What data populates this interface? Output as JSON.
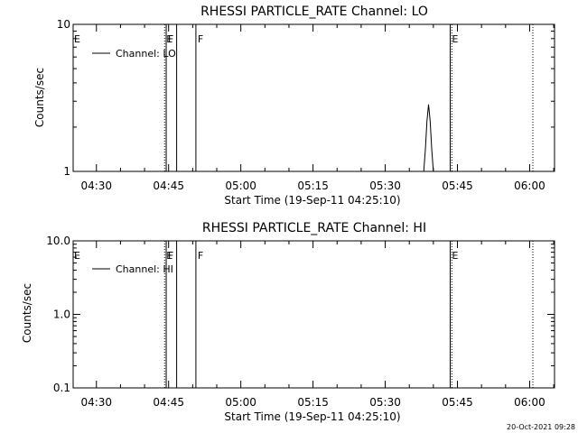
{
  "chart_data": [
    {
      "type": "line",
      "title": "RHESSI PARTICLE_RATE Channel: LO",
      "xlabel": "Start Time (19-Sep-11 04:25:10)",
      "ylabel": "Counts/sec",
      "y_scale": "log",
      "ylim": [
        1,
        10
      ],
      "y_ticks": [
        {
          "value": 1,
          "label": "1"
        },
        {
          "value": 10,
          "label": "10"
        }
      ],
      "xlim": [
        "04:25:10",
        "06:05:10"
      ],
      "x_ticks": [
        "04:30",
        "04:45",
        "05:00",
        "05:15",
        "05:30",
        "05:45",
        "06:00"
      ],
      "legend": {
        "placement": "top-left",
        "entries": [
          "Channel: LO"
        ]
      },
      "series": [
        {
          "name": "Channel: LO",
          "x": [
            "05:38:00",
            "05:38:20",
            "05:38:40",
            "05:39:00",
            "05:39:20",
            "05:39:40",
            "05:40:00"
          ],
          "y": [
            1.0,
            1.4,
            2.2,
            2.85,
            2.2,
            1.4,
            1.0
          ]
        }
      ],
      "markers": [
        {
          "time": "04:44:10",
          "style": "dotted",
          "label": "E"
        },
        {
          "time": "04:44:30",
          "style": "solid",
          "label": "F"
        },
        {
          "time": "04:46:40",
          "style": "solid",
          "label": ""
        },
        {
          "time": "04:50:40",
          "style": "solid",
          "label": "F"
        },
        {
          "time": "05:43:30",
          "style": "solid",
          "label": "E"
        },
        {
          "time": "05:43:50",
          "style": "dotted",
          "label": ""
        },
        {
          "time": "06:00:40",
          "style": "dotted",
          "label": ""
        }
      ]
    },
    {
      "type": "line",
      "title": "RHESSI PARTICLE_RATE Channel: HI",
      "xlabel": "Start Time (19-Sep-11 04:25:10)",
      "ylabel": "Counts/sec",
      "y_scale": "log",
      "ylim": [
        0.1,
        10
      ],
      "y_ticks": [
        {
          "value": 0.1,
          "label": "0.1"
        },
        {
          "value": 1,
          "label": "1.0"
        },
        {
          "value": 10,
          "label": "10.0"
        }
      ],
      "xlim": [
        "04:25:10",
        "06:05:10"
      ],
      "x_ticks": [
        "04:30",
        "04:45",
        "05:00",
        "05:15",
        "05:30",
        "05:45",
        "06:00"
      ],
      "legend": {
        "placement": "top-left",
        "entries": [
          "Channel: HI"
        ]
      },
      "series": [
        {
          "name": "Channel: HI",
          "x": [],
          "y": []
        }
      ],
      "markers": [
        {
          "time": "04:44:10",
          "style": "dotted",
          "label": "E"
        },
        {
          "time": "04:44:30",
          "style": "solid",
          "label": "F"
        },
        {
          "time": "04:46:40",
          "style": "solid",
          "label": ""
        },
        {
          "time": "04:50:40",
          "style": "solid",
          "label": "F"
        },
        {
          "time": "05:43:30",
          "style": "solid",
          "label": "E"
        },
        {
          "time": "05:43:50",
          "style": "dotted",
          "label": ""
        },
        {
          "time": "06:00:40",
          "style": "dotted",
          "label": ""
        }
      ]
    }
  ],
  "footer": {
    "timestamp": "20-Oct-2021 09:28"
  }
}
